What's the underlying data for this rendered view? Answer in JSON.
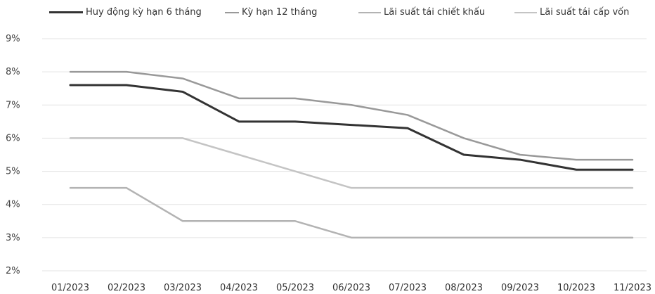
{
  "chart_data": {
    "type": "line",
    "categories": [
      "01/2023",
      "02/2023",
      "03/2023",
      "04/2023",
      "05/2023",
      "06/2023",
      "07/2023",
      "08/2023",
      "09/2023",
      "10/2023",
      "11/2023"
    ],
    "y_ticks": [
      "2%",
      "3%",
      "4%",
      "5%",
      "6%",
      "7%",
      "8%",
      "9%"
    ],
    "ylim": [
      2,
      9
    ],
    "grid": true,
    "legend_position": "top",
    "series": [
      {
        "name": "Huy động kỳ hạn 6 tháng",
        "color": "#333333",
        "values": [
          7.6,
          7.6,
          7.4,
          6.5,
          6.5,
          6.4,
          6.3,
          5.5,
          5.35,
          5.05,
          5.05
        ]
      },
      {
        "name": "Kỳ hạn 12 tháng",
        "color": "#999999",
        "values": [
          8.0,
          8.0,
          7.8,
          7.2,
          7.2,
          7.0,
          6.7,
          6.0,
          5.5,
          5.35,
          5.35
        ]
      },
      {
        "name": "Lãi suất tái chiết khấu",
        "color": "#b3b3b3",
        "values": [
          4.5,
          4.5,
          3.5,
          3.5,
          3.5,
          3.0,
          3.0,
          3.0,
          3.0,
          3.0,
          3.0
        ]
      },
      {
        "name": "Lãi suất tái cấp vốn",
        "color": "#c4c4c4",
        "values": [
          6.0,
          6.0,
          6.0,
          5.5,
          5.0,
          4.5,
          4.5,
          4.5,
          4.5,
          4.5,
          4.5
        ]
      }
    ]
  }
}
